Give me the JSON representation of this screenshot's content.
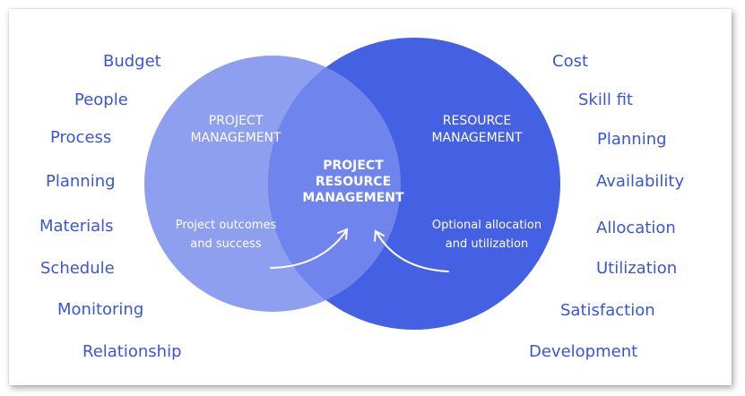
{
  "diagram": {
    "left_circle": {
      "title_line1": "PROJECT",
      "title_line2": "MANAGEMENT",
      "sub_line1": "Project outcomes",
      "sub_line2": "and success"
    },
    "right_circle": {
      "title_line1": "RESOURCE",
      "title_line2": "MANAGEMENT",
      "sub_line1": "Optional allocation",
      "sub_line2": "and utilization"
    },
    "center": {
      "line1": "PROJECT",
      "line2": "RESOURCE",
      "line3": "MANAGEMENT"
    },
    "left_words": [
      "Budget",
      "People",
      "Process",
      "Planning",
      "Materials",
      "Schedule",
      "Monitoring",
      "Relationship"
    ],
    "right_words": [
      "Cost",
      "Skill fit",
      "Planning",
      "Availability",
      "Allocation",
      "Utilization",
      "Satisfaction",
      "Development"
    ],
    "colors": {
      "left_circle": "#8f9ff0",
      "right_circle": "#4460e3",
      "overlap": "#6d82ea",
      "words": "#3a55d8"
    }
  }
}
